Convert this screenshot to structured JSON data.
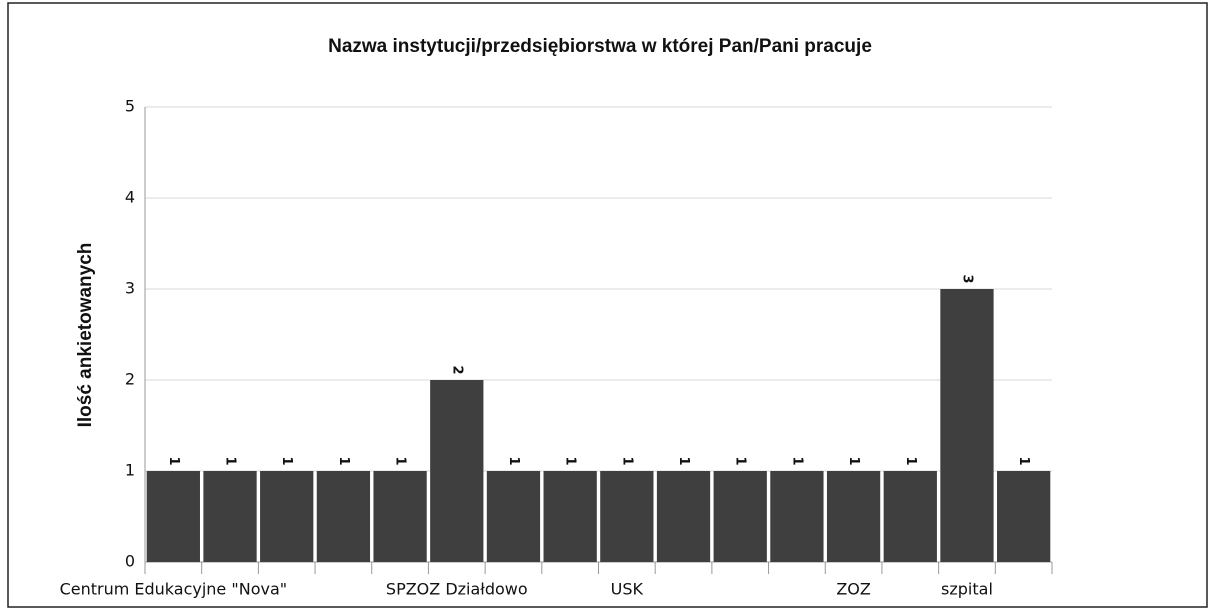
{
  "chart_data": {
    "type": "bar",
    "title": "Nazwa instytucji/przedsiębiorstwa w której Pan/Pani pracuje",
    "y_label": "Ilość ankietowanych",
    "categories": [
      "Centrum Edukacyjne \"Nova\"",
      null,
      null,
      null,
      null,
      "SPZOZ Działdowo",
      null,
      null,
      "USK",
      null,
      null,
      null,
      "ZOZ",
      null,
      "szpital",
      null
    ],
    "values": [
      1,
      1,
      1,
      1,
      1,
      2,
      1,
      1,
      1,
      1,
      1,
      1,
      1,
      1,
      3,
      1
    ],
    "color": "#3f3f3f",
    "ylim": [
      0,
      5
    ],
    "yticks": [
      0,
      1,
      2,
      3,
      4,
      5
    ],
    "grid": true
  }
}
